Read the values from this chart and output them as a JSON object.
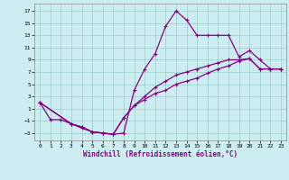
{
  "xlabel": "Windchill (Refroidissement éolien,°C)",
  "bg_color": "#cceef0",
  "line_color": "#880088",
  "grid_color": "#99cccc",
  "xlim": [
    -0.5,
    23.5
  ],
  "ylim": [
    -4.2,
    18.2
  ],
  "xticks": [
    0,
    1,
    2,
    3,
    4,
    5,
    6,
    7,
    8,
    9,
    10,
    11,
    12,
    13,
    14,
    15,
    16,
    17,
    18,
    19,
    20,
    21,
    22,
    23
  ],
  "yticks": [
    -3,
    -1,
    1,
    3,
    5,
    7,
    9,
    11,
    13,
    15,
    17
  ],
  "line1_x": [
    0,
    1,
    2,
    3,
    4,
    5,
    6,
    7,
    8,
    9,
    10,
    11,
    12,
    13,
    14,
    15,
    16,
    17,
    18,
    19,
    20,
    21,
    22,
    23
  ],
  "line1_y": [
    2,
    -0.8,
    -0.8,
    -1.5,
    -2.2,
    -2.8,
    -3,
    -3.2,
    -3,
    4,
    7.5,
    10,
    14.5,
    17,
    15.5,
    13,
    13,
    13,
    13,
    9.5,
    10.5,
    9,
    7.5,
    7.5
  ],
  "line2_x": [
    0,
    3,
    4,
    5,
    6,
    7,
    8,
    9,
    10,
    11,
    12,
    13,
    14,
    15,
    16,
    17,
    18,
    19,
    20,
    21,
    22,
    23
  ],
  "line2_y": [
    2,
    -1.5,
    -2,
    -2.8,
    -3,
    -3.2,
    -0.5,
    1.5,
    2.5,
    3.5,
    4,
    5,
    5.5,
    6,
    6.8,
    7.5,
    8,
    8.8,
    9.2,
    7.5,
    7.5,
    7.5
  ],
  "line3_x": [
    0,
    3,
    4,
    5,
    6,
    7,
    8,
    9,
    10,
    11,
    12,
    13,
    14,
    15,
    16,
    17,
    18,
    19,
    20,
    21,
    22,
    23
  ],
  "line3_y": [
    2,
    -1.5,
    -2,
    -2.8,
    -3,
    -3.2,
    -0.5,
    1.5,
    3,
    4.5,
    5.5,
    6.5,
    7,
    7.5,
    8,
    8.5,
    9,
    9,
    9.2,
    7.5,
    7.5,
    7.5
  ]
}
